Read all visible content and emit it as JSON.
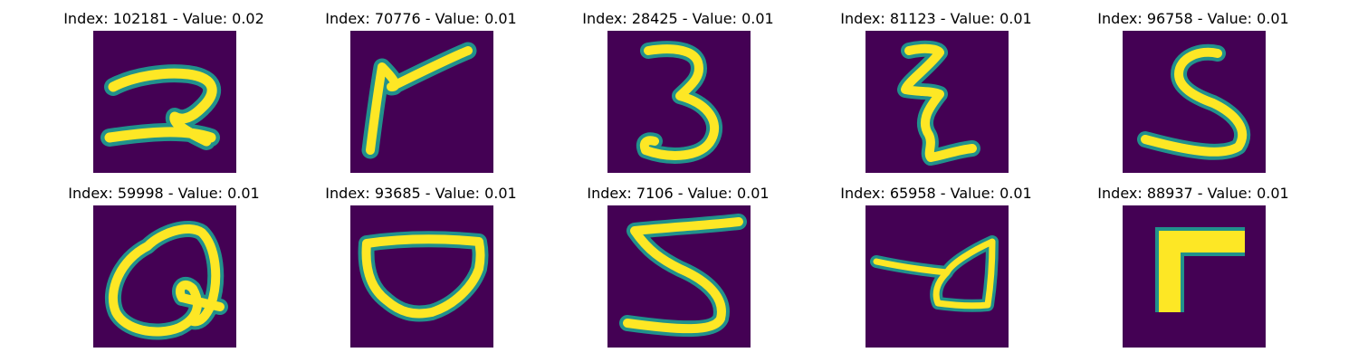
{
  "panels": [
    {
      "title": "Index: 102181 - Value: 0.02",
      "glyph": "digit-2"
    },
    {
      "title": "Index: 70776 - Value: 0.01",
      "glyph": "digit-7-like"
    },
    {
      "title": "Index: 28425 - Value: 0.01",
      "glyph": "digit-3"
    },
    {
      "title": "Index: 81123 - Value: 0.01",
      "glyph": "digit-3-zigzag"
    },
    {
      "title": "Index: 96758 - Value: 0.01",
      "glyph": "digit-5"
    },
    {
      "title": "Index: 59998 - Value: 0.01",
      "glyph": "loop-shape"
    },
    {
      "title": "Index: 93685 - Value: 0.01",
      "glyph": "bowl-shape"
    },
    {
      "title": "Index: 7106 - Value: 0.01",
      "glyph": "digit-5"
    },
    {
      "title": "Index: 65958 - Value: 0.01",
      "glyph": "triangle-loop"
    },
    {
      "title": "Index: 88937 - Value: 0.01",
      "glyph": "thick-angle"
    }
  ],
  "colors": {
    "background": "#440154",
    "stroke_edge": "#21918c",
    "stroke_core": "#fde725"
  }
}
